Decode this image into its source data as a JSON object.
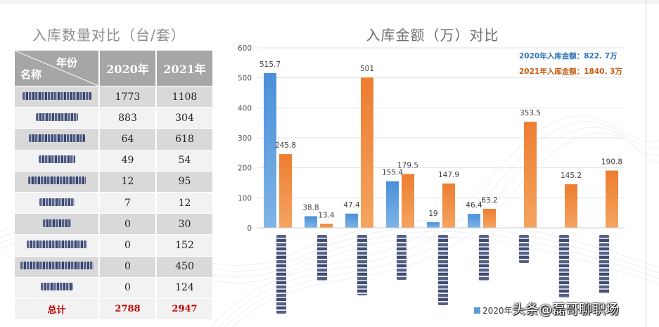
{
  "left_panel": {
    "title": "入库数量对比（台/套）",
    "header": {
      "year_label": "年份",
      "name_label": "名称",
      "col_2020": "2020年",
      "col_2021": "2021年"
    },
    "rows": [
      {
        "v2020": "1773",
        "v2021": "1108"
      },
      {
        "v2020": "883",
        "v2021": "304"
      },
      {
        "v2020": "64",
        "v2021": "618"
      },
      {
        "v2020": "49",
        "v2021": "54"
      },
      {
        "v2020": "12",
        "v2021": "95"
      },
      {
        "v2020": "7",
        "v2021": "12"
      },
      {
        "v2020": "0",
        "v2021": "30"
      },
      {
        "v2020": "0",
        "v2021": "152"
      },
      {
        "v2020": "0",
        "v2021": "450"
      },
      {
        "v2020": "0",
        "v2021": "124"
      }
    ],
    "total": {
      "label": "总计",
      "v2020": "2788",
      "v2021": "2947"
    }
  },
  "chart_data": {
    "type": "bar",
    "title": "入库金额（万）对比",
    "categories_count": 9,
    "ylim": [
      0,
      600
    ],
    "yticks": [
      "0",
      "100",
      "200",
      "300",
      "400",
      "500",
      "600"
    ],
    "series": [
      {
        "name": "2020年",
        "color": "#5b9bd5",
        "values": [
          515.7,
          38.8,
          47.4,
          155.4,
          19,
          46.4,
          null,
          null,
          null
        ],
        "labels": [
          "515.7",
          "38.8",
          "47.4",
          "155.4",
          "19",
          "46.4",
          "",
          "",
          ""
        ]
      },
      {
        "name": "",
        "color": "#ed7d31",
        "values": [
          245.8,
          13.4,
          501,
          179.5,
          147.9,
          63.2,
          353.5,
          145.2,
          190.8
        ],
        "labels": [
          "245.8",
          "13.4",
          "501",
          "179.5",
          "147.9",
          "63.2",
          "353.5",
          "145.2",
          "190.8"
        ]
      }
    ],
    "annotations": [
      {
        "text": "2020年入库金额：822. 7万",
        "color": "#2e75b6"
      },
      {
        "text": "2021年入库金额：1840. 3万",
        "color": "#c55a11"
      }
    ],
    "grid": true,
    "legend_visible": "2020年"
  },
  "watermark": "头条@磊哥聊职场"
}
